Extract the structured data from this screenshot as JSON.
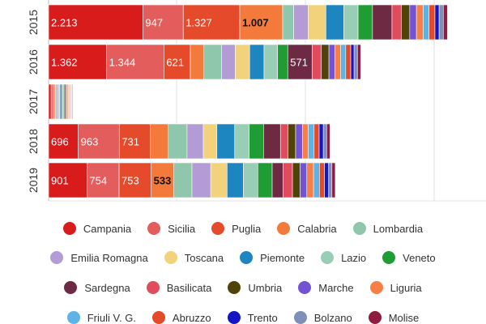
{
  "chart_data": {
    "type": "bar",
    "orientation": "horizontal",
    "stacked": true,
    "categories": [
      "2015",
      "2016",
      "2017",
      "2018",
      "2019"
    ],
    "xlim": [
      0,
      10000
    ],
    "grid": true,
    "legend_position": "bottom",
    "series": [
      {
        "name": "Campania",
        "color": "#d81c1c",
        "values": [
          2213,
          1362,
          60,
          696,
          901
        ]
      },
      {
        "name": "Sicilia",
        "color": "#e35d5d",
        "values": [
          947,
          1344,
          40,
          963,
          754
        ]
      },
      {
        "name": "Puglia",
        "color": "#e54a2a",
        "values": [
          1327,
          621,
          35,
          731,
          753
        ]
      },
      {
        "name": "Calabria",
        "color": "#f47a3c",
        "values": [
          1007,
          318,
          30,
          418,
          533
        ]
      },
      {
        "name": "Lombardia",
        "color": "#8ec7ab",
        "values": [
          258,
          418,
          35,
          441,
          424
        ]
      },
      {
        "name": "Emilia Romagna",
        "color": "#b39cd6",
        "values": [
          338,
          318,
          40,
          383,
          441
        ]
      },
      {
        "name": "Toscana",
        "color": "#f2d27a",
        "values": [
          418,
          338,
          30,
          318,
          383
        ]
      },
      {
        "name": "Piemonte",
        "color": "#1d86c0",
        "values": [
          418,
          338,
          45,
          418,
          383
        ]
      },
      {
        "name": "Lazio",
        "color": "#9acdb5",
        "values": [
          338,
          318,
          35,
          338,
          338
        ]
      },
      {
        "name": "Veneto",
        "color": "#1f9c34",
        "values": [
          338,
          238,
          30,
          338,
          338
        ]
      },
      {
        "name": "Sardegna",
        "color": "#6d2a42",
        "values": [
          458,
          571,
          25,
          398,
          258
        ]
      },
      {
        "name": "Basilicata",
        "color": "#e04b5e",
        "values": [
          218,
          218,
          20,
          178,
          218
        ]
      },
      {
        "name": "Umbria",
        "color": "#4f4308",
        "values": [
          198,
          178,
          20,
          178,
          178
        ]
      },
      {
        "name": "Marche",
        "color": "#7352d4",
        "values": [
          158,
          138,
          18,
          158,
          158
        ]
      },
      {
        "name": "Liguria",
        "color": "#f77e44",
        "values": [
          158,
          138,
          18,
          138,
          158
        ]
      },
      {
        "name": "Friuli V. G.",
        "color": "#5db3e6",
        "values": [
          138,
          118,
          18,
          138,
          138
        ]
      },
      {
        "name": "Abruzzo",
        "color": "#e34a2a",
        "values": [
          138,
          118,
          18,
          118,
          118
        ]
      },
      {
        "name": "Trento",
        "color": "#1515c8",
        "values": [
          98,
          78,
          15,
          98,
          98
        ]
      },
      {
        "name": "Bolzano",
        "color": "#7f8fb8",
        "values": [
          98,
          78,
          15,
          78,
          78
        ]
      },
      {
        "name": "Molise",
        "color": "#8f1d40",
        "values": [
          98,
          78,
          15,
          78,
          78
        ]
      }
    ],
    "data_labels": [
      {
        "category": "2015",
        "series": "Campania",
        "text": "2.213"
      },
      {
        "category": "2015",
        "series": "Sicilia",
        "text": "947"
      },
      {
        "category": "2015",
        "series": "Puglia",
        "text": "1.327"
      },
      {
        "category": "2015",
        "series": "Calabria",
        "text": "1.007"
      },
      {
        "category": "2016",
        "series": "Campania",
        "text": "1.362"
      },
      {
        "category": "2016",
        "series": "Sicilia",
        "text": "1.344"
      },
      {
        "category": "2016",
        "series": "Puglia",
        "text": "621"
      },
      {
        "category": "2016",
        "series": "Sardegna",
        "text": "571"
      },
      {
        "category": "2018",
        "series": "Campania",
        "text": "696"
      },
      {
        "category": "2018",
        "series": "Sicilia",
        "text": "963"
      },
      {
        "category": "2018",
        "series": "Puglia",
        "text": "731"
      },
      {
        "category": "2019",
        "series": "Campania",
        "text": "901"
      },
      {
        "category": "2019",
        "series": "Sicilia",
        "text": "754"
      },
      {
        "category": "2019",
        "series": "Puglia",
        "text": "753"
      },
      {
        "category": "2019",
        "series": "Calabria",
        "text": "533"
      }
    ],
    "legend_rows": [
      [
        "Campania",
        "Sicilia",
        "Puglia",
        "Calabria",
        "Lombardia"
      ],
      [
        "Emilia Romagna",
        "Toscana",
        "Piemonte",
        "Lazio",
        "Veneto"
      ],
      [
        "Sardegna",
        "Basilicata",
        "Umbria",
        "Marche",
        "Liguria"
      ],
      [
        "Friuli V. G.",
        "Abruzzo",
        "Trento",
        "Bolzano",
        "Molise"
      ]
    ]
  }
}
